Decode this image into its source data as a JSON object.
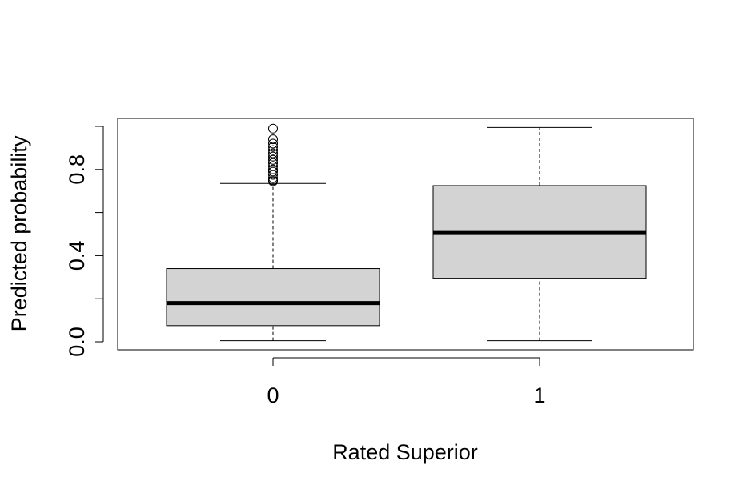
{
  "chart_data": {
    "type": "boxplot",
    "xlabel": "Rated Superior",
    "ylabel": "Predicted probability",
    "categories": [
      "0",
      "1"
    ],
    "ylim": [
      -0.015,
      1.02
    ],
    "yticks": [
      0.0,
      0.2,
      0.4,
      0.6,
      0.8,
      1.0
    ],
    "ytick_labels": [
      "0.0",
      "",
      "0.4",
      "",
      "0.8",
      ""
    ],
    "box_fill": "#d3d3d3",
    "groups": [
      {
        "category": "0",
        "whisker_low": 0.005,
        "q1": 0.075,
        "median": 0.18,
        "q3": 0.34,
        "whisker_high": 0.735,
        "outliers": [
          0.745,
          0.75,
          0.76,
          0.775,
          0.79,
          0.8,
          0.815,
          0.83,
          0.845,
          0.86,
          0.875,
          0.89,
          0.905,
          0.92,
          0.94,
          0.99
        ]
      },
      {
        "category": "1",
        "whisker_low": 0.005,
        "q1": 0.295,
        "median": 0.505,
        "q3": 0.725,
        "whisker_high": 0.995,
        "outliers": []
      }
    ],
    "grid": false,
    "legend": "none"
  }
}
